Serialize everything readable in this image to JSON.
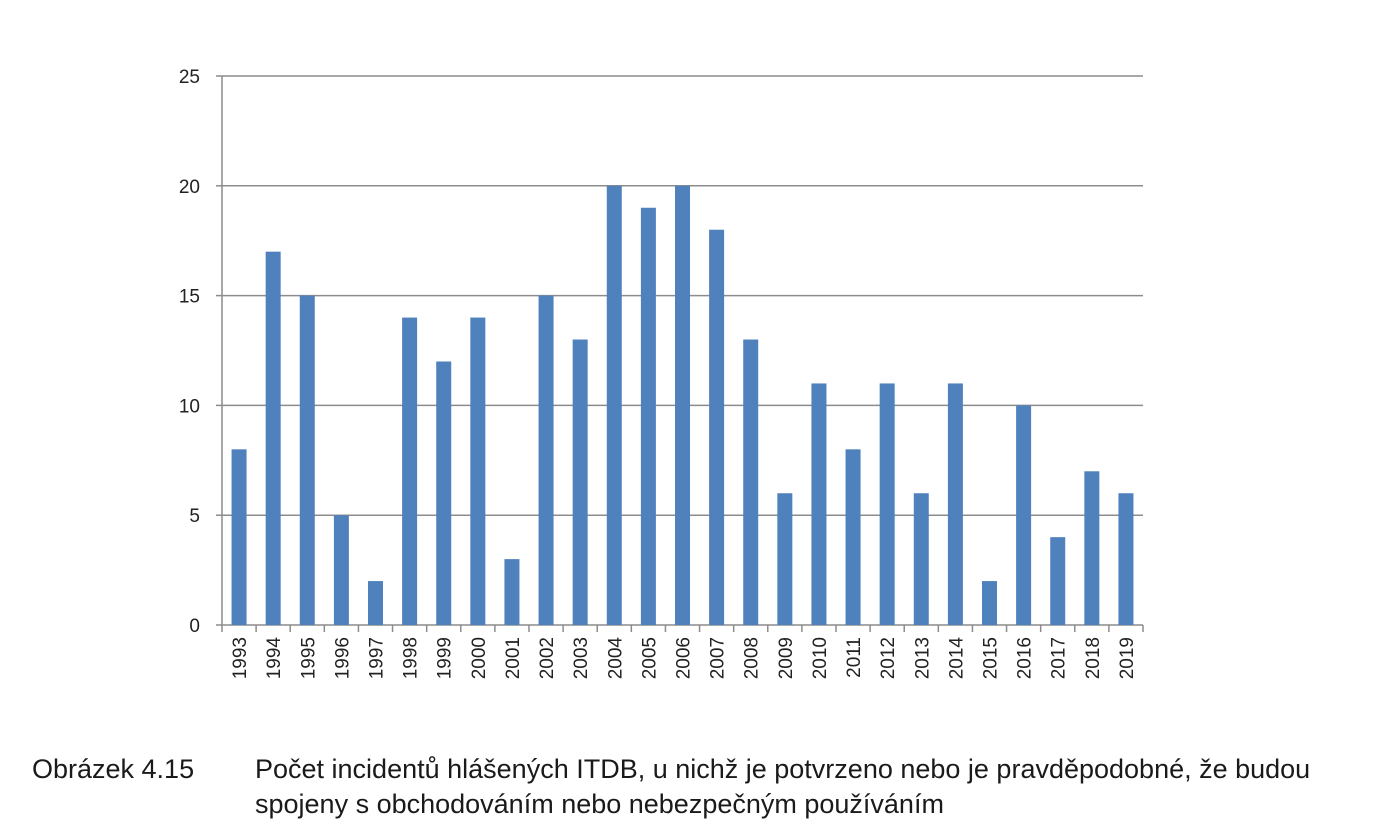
{
  "chart_data": {
    "type": "bar",
    "categories": [
      "1993",
      "1994",
      "1995",
      "1996",
      "1997",
      "1998",
      "1999",
      "2000",
      "2001",
      "2002",
      "2003",
      "2004",
      "2005",
      "2006",
      "2007",
      "2008",
      "2009",
      "2010",
      "2011",
      "2012",
      "2013",
      "2014",
      "2015",
      "2016",
      "2017",
      "2018",
      "2019"
    ],
    "values": [
      8,
      17,
      15,
      5,
      2,
      14,
      12,
      14,
      3,
      15,
      13,
      20,
      19,
      20,
      18,
      13,
      6,
      11,
      8,
      11,
      6,
      11,
      2,
      10,
      4,
      7,
      6
    ],
    "ylim": [
      0,
      25
    ],
    "yticks": [
      0,
      5,
      10,
      15,
      20,
      25
    ],
    "grid": true,
    "legend": "none",
    "bar_color": "#4f81bd",
    "grid_color": "#8c8c8c"
  },
  "caption": {
    "label": "Obrázek 4.15",
    "text": "Počet incidentů hlášených ITDB, u nichž je potvrzeno nebo je pravděpodobné, že budou spojeny s obchodováním nebo nebezpečným používáním"
  }
}
